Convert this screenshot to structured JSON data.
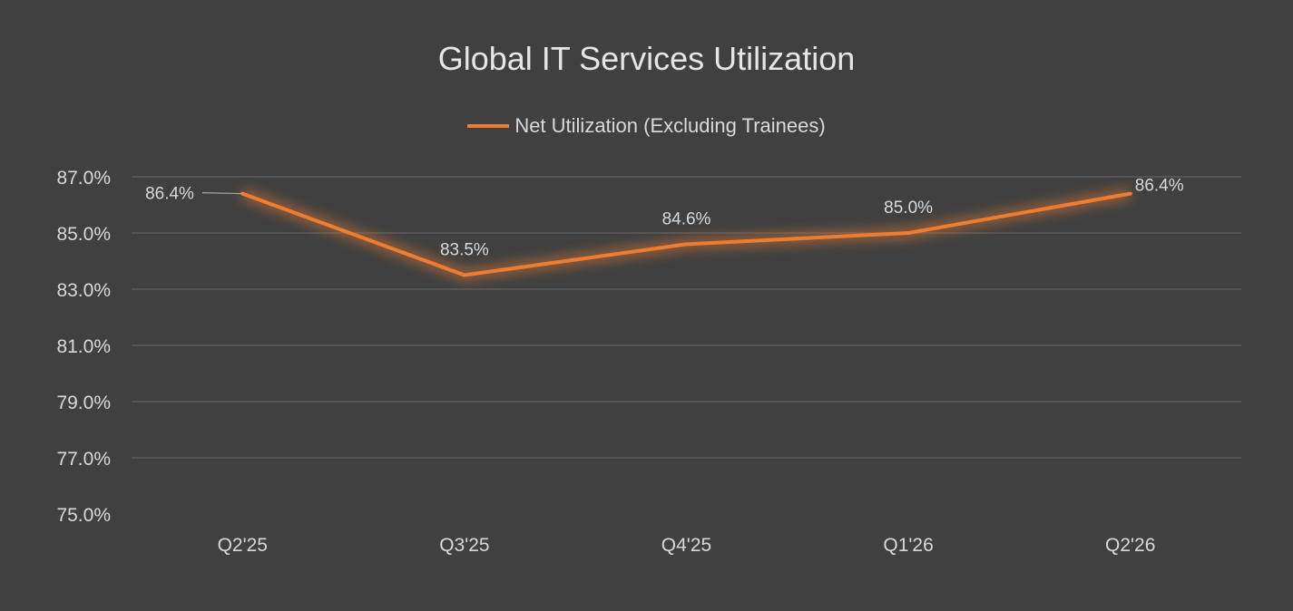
{
  "chart_data": {
    "type": "line",
    "title": "Global IT Services Utilization",
    "categories": [
      "Q2'25",
      "Q3'25",
      "Q4'25",
      "Q1'26",
      "Q2'26"
    ],
    "series": [
      {
        "name": "Net Utilization (Excluding Trainees)",
        "values": [
          86.4,
          83.5,
          84.6,
          85.0,
          86.4
        ],
        "labels": [
          "86.4%",
          "83.5%",
          "84.6%",
          "85.0%",
          "86.4%"
        ],
        "color": "#ed7d31"
      }
    ],
    "ylim": [
      75,
      87
    ],
    "yticks": [
      75,
      77,
      79,
      81,
      83,
      85,
      87
    ],
    "ytick_labels": [
      "75.0%",
      "77.0%",
      "79.0%",
      "81.0%",
      "83.0%",
      "85.0%",
      "87.0%"
    ],
    "xlabel": "",
    "ylabel": "",
    "grid": true,
    "legend_position": "top-center"
  }
}
